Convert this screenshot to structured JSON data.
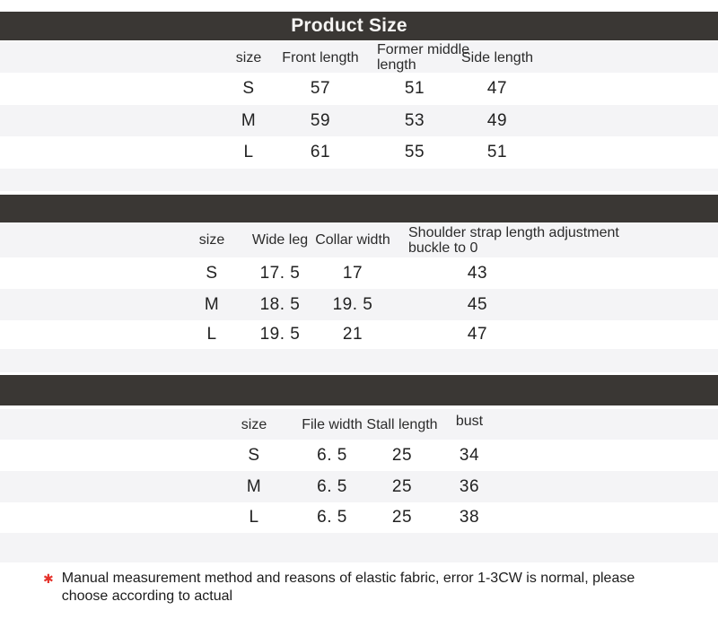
{
  "title": "Product Size",
  "tables": [
    {
      "columns": [
        "size",
        "Front length",
        "Former middle length",
        "Side length"
      ],
      "rows": [
        [
          "S",
          "57",
          "51",
          "47"
        ],
        [
          "M",
          "59",
          "53",
          "49"
        ],
        [
          "L",
          "61",
          "55",
          "51"
        ]
      ]
    },
    {
      "columns": [
        "size",
        "Wide leg",
        "Collar width",
        "Shoulder strap length adjustment buckle to 0"
      ],
      "rows": [
        [
          "S",
          "17. 5",
          "17",
          "43"
        ],
        [
          "M",
          "18. 5",
          "19. 5",
          "45"
        ],
        [
          "L",
          "19. 5",
          "21",
          "47"
        ]
      ]
    },
    {
      "columns": [
        "size",
        "File width",
        "Stall length",
        "bust"
      ],
      "rows": [
        [
          "S",
          "6. 5",
          "25",
          "34"
        ],
        [
          "M",
          "6. 5",
          "25",
          "36"
        ],
        [
          "L",
          "6. 5",
          "25",
          "38"
        ]
      ]
    }
  ],
  "footnote": {
    "marker": "✱",
    "text": "Manual measurement method and reasons of elastic fabric, error 1-3CW is normal, please choose according to actual"
  },
  "colors": {
    "band_dark": "#3a3734",
    "row_alt": "#f4f4f6",
    "accent_red": "#e5322b",
    "text": "#1f1f1f"
  }
}
